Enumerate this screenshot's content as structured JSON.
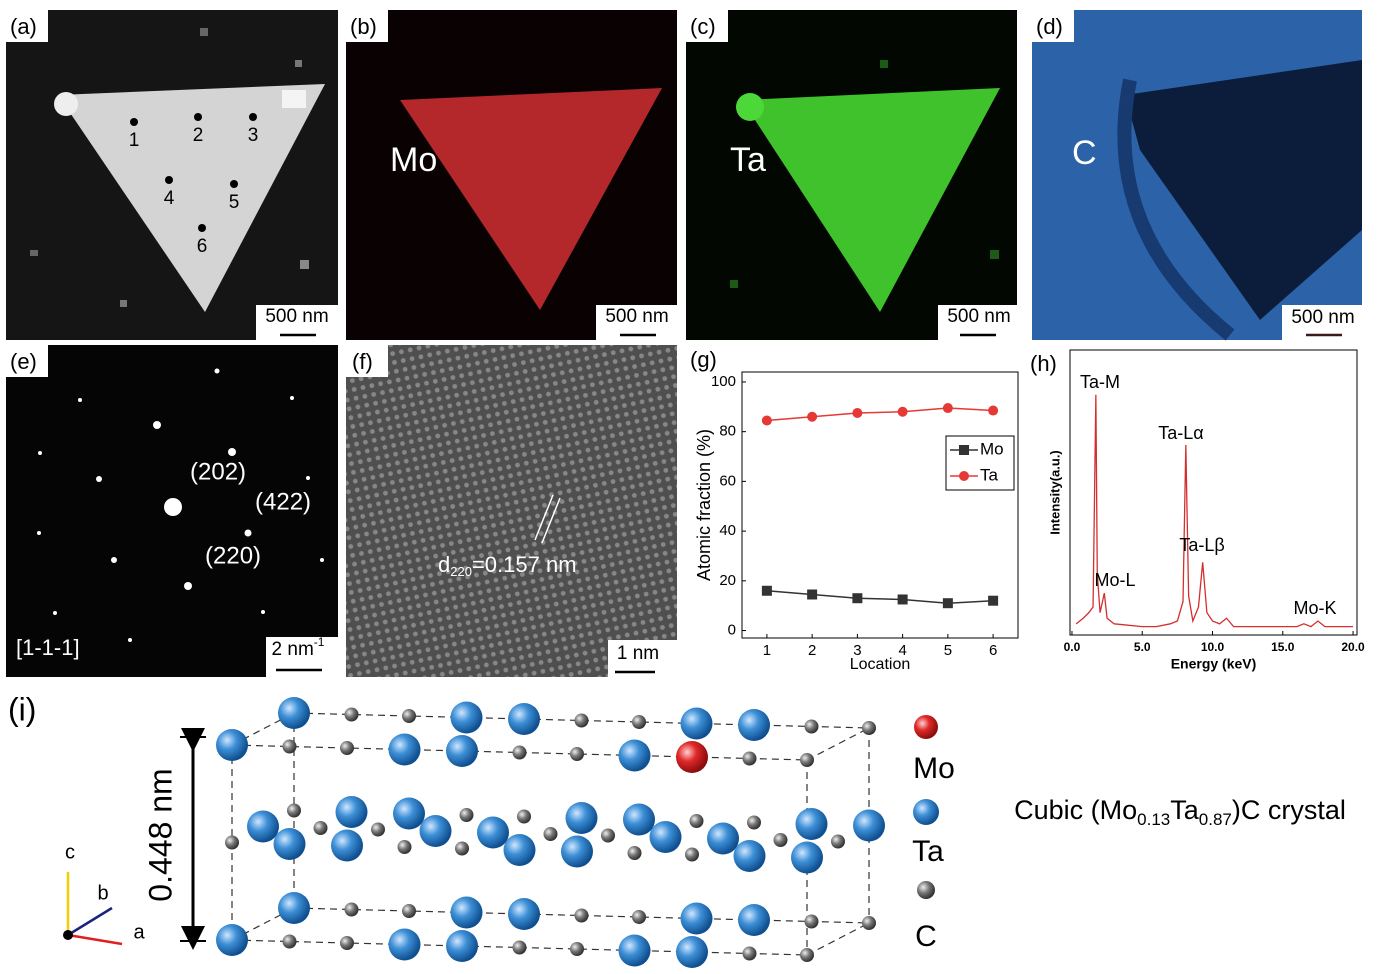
{
  "panels": {
    "a": {
      "label": "(a)",
      "points": [
        "1",
        "2",
        "3",
        "4",
        "5",
        "6"
      ],
      "scale": "500 nm"
    },
    "b": {
      "label": "(b)",
      "element": "Mo",
      "scale": "500 nm"
    },
    "c": {
      "label": "(c)",
      "element": "Ta",
      "scale": "500 nm"
    },
    "d": {
      "label": "(d)",
      "element": "C",
      "scale": "500 nm"
    },
    "e": {
      "label": "(e)",
      "spots": [
        "(202)",
        "(422)",
        "(220)"
      ],
      "zone": "[1-1-1]",
      "scale": {
        "base": "2 nm",
        "sup": "-1"
      }
    },
    "f": {
      "label": "(f)",
      "spacing": {
        "base": "d",
        "sub": "220",
        "rest": "=0.157 nm"
      },
      "scale": "1 nm"
    },
    "g": {
      "label": "(g)"
    },
    "h": {
      "label": "(h)"
    },
    "i": {
      "label": "(i)",
      "height": "0.448 nm",
      "legend": [
        "Mo",
        "Ta",
        "C"
      ],
      "axes": [
        "c",
        "b",
        "a"
      ],
      "caption": [
        "Cubic (Mo",
        "0.13",
        "Ta",
        "0.87",
        ")C crystal"
      ]
    }
  },
  "chart_data": [
    {
      "type": "line",
      "x": [
        1,
        2,
        3,
        4,
        5,
        6
      ],
      "series": [
        {
          "name": "Mo",
          "color": "#333333",
          "marker": "square",
          "values": [
            16,
            14.5,
            13,
            12.5,
            11,
            12
          ]
        },
        {
          "name": "Ta",
          "color": "#e53935",
          "marker": "circle",
          "values": [
            84.5,
            86,
            87.5,
            88,
            89.5,
            88.5
          ]
        }
      ],
      "xlabel": "Location",
      "ylabel": "Atomic fraction (%)",
      "xlim": [
        0.45,
        6.55
      ],
      "ylim": [
        -3,
        104
      ],
      "xticks": [
        1,
        2,
        3,
        4,
        5,
        6
      ],
      "yticks": [
        0,
        20,
        40,
        60,
        80,
        100
      ],
      "legend": "right"
    },
    {
      "type": "line",
      "x": [
        0.3,
        0.8,
        1.2,
        1.5,
        1.7,
        1.8,
        2.0,
        2.3,
        2.5,
        3,
        5,
        6,
        7,
        7.5,
        7.9,
        8.1,
        8.3,
        8.6,
        9.0,
        9.3,
        9.6,
        10,
        10.5,
        11,
        11.5,
        12,
        14,
        16,
        16.5,
        17,
        17.5,
        18,
        20
      ],
      "values": [
        2,
        4,
        6,
        8,
        84,
        20,
        6,
        13,
        4,
        2,
        1,
        1,
        2,
        3,
        10,
        66,
        12,
        3,
        8,
        24,
        6,
        3,
        2,
        4,
        1,
        1,
        1,
        1,
        2,
        1,
        3,
        1,
        1
      ],
      "color": "#d32f2f",
      "xlabel": "Energy (keV)",
      "ylabel": "Intensity(a.u.)",
      "xlim": [
        -0.14,
        20.28
      ],
      "ylim": [
        -2,
        100
      ],
      "xticks": [
        {
          "value": 0,
          "label": "0.0"
        },
        {
          "value": 5,
          "label": "5.0"
        },
        {
          "value": 10,
          "label": "10.0"
        },
        {
          "value": 15,
          "label": "15.0"
        },
        {
          "value": 20,
          "label": "20.0"
        }
      ],
      "annotations": [
        "Ta-M",
        "Ta-Lα",
        "Ta-Lβ",
        "Mo-L",
        "Mo-K"
      ]
    }
  ]
}
